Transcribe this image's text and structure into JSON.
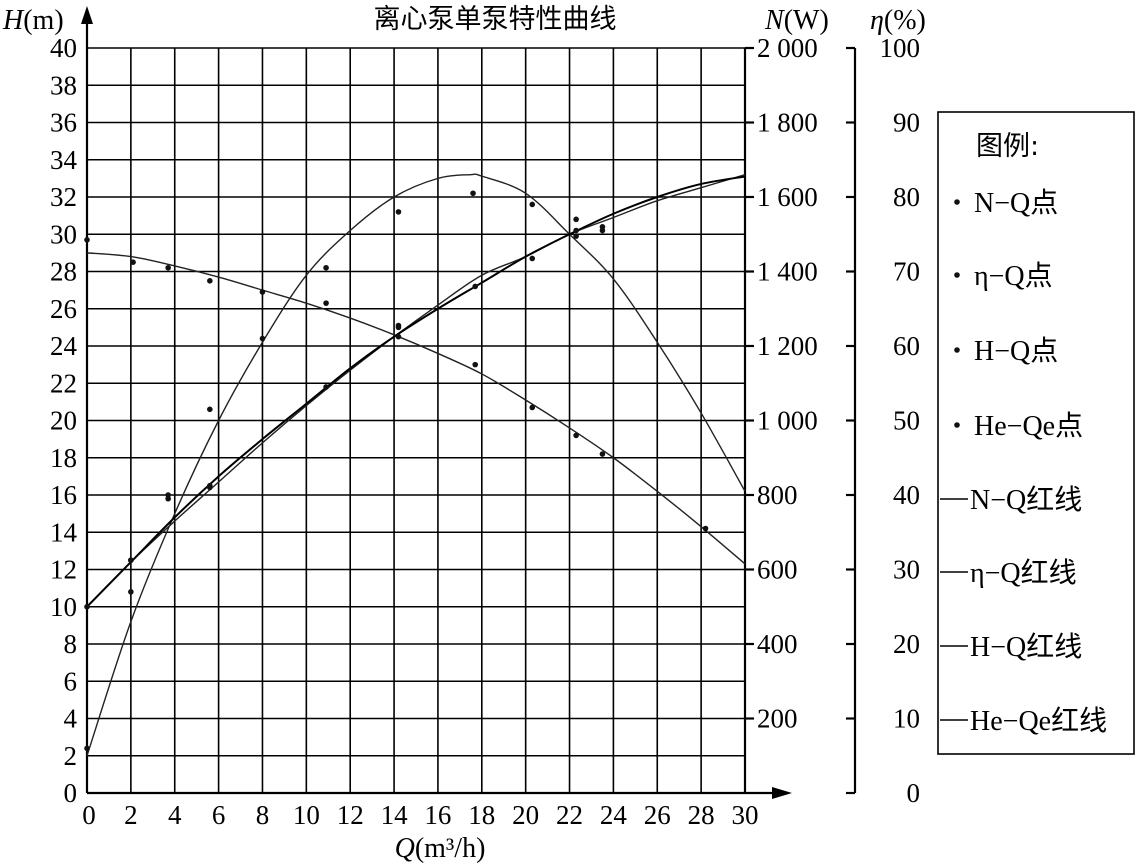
{
  "chart_data": {
    "type": "line",
    "title": "离心泵单泵特性曲线",
    "x_axis": {
      "label_var": "Q",
      "label_unit": "(m³/h)",
      "range": [
        0,
        30
      ],
      "ticks": [
        "0",
        "2",
        "4",
        "6",
        "8",
        "10",
        "12",
        "14",
        "16",
        "18",
        "20",
        "22",
        "24",
        "26",
        "28",
        "30"
      ]
    },
    "y_axis_H": {
      "label_var": "H",
      "label_unit": "(m)",
      "range": [
        0,
        40
      ],
      "ticks": [
        "0",
        "2",
        "4",
        "6",
        "8",
        "10",
        "12",
        "14",
        "16",
        "18",
        "20",
        "22",
        "24",
        "26",
        "28",
        "30",
        "32",
        "34",
        "36",
        "38",
        "40"
      ]
    },
    "y_axis_N": {
      "label_var": "N",
      "label_unit": "(W)",
      "range": [
        0,
        2000
      ],
      "ticks": [
        "200",
        "400",
        "600",
        "800",
        "1 000",
        "1 200",
        "1 400",
        "1 600",
        "1 800",
        "2 000"
      ]
    },
    "y_axis_eta": {
      "label_var": "η",
      "label_unit": "(%)",
      "range": [
        0,
        100
      ],
      "ticks": [
        "0",
        "10",
        "20",
        "30",
        "40",
        "50",
        "60",
        "70",
        "80",
        "90",
        "100"
      ]
    },
    "grid": true,
    "legend_position": "right",
    "legend": {
      "title": "图例:",
      "items": [
        "N−Q点",
        "η−Q点",
        "H−Q点",
        "He−Qe点",
        "N−Q红线",
        "η−Q红线",
        "H−Q红线",
        "He−Qe红线"
      ]
    },
    "series": [
      {
        "name": "η−Q",
        "axis": "eta",
        "points": [
          [
            0,
            6
          ],
          [
            2,
            27
          ],
          [
            3.7,
            40
          ],
          [
            5.6,
            51.5
          ],
          [
            8,
            61
          ],
          [
            10.9,
            70.5
          ],
          [
            14.2,
            78
          ],
          [
            17.6,
            80.5
          ],
          [
            20.3,
            79
          ],
          [
            22.3,
            77
          ],
          [
            23.5,
            75.5
          ]
        ],
        "curve": [
          [
            0,
            5
          ],
          [
            2,
            23
          ],
          [
            4,
            37.5
          ],
          [
            6,
            50
          ],
          [
            8,
            60.5
          ],
          [
            10,
            69.5
          ],
          [
            12,
            75.5
          ],
          [
            14,
            80
          ],
          [
            16,
            82.5
          ],
          [
            17.5,
            83
          ],
          [
            18,
            82.8
          ],
          [
            20,
            80.5
          ],
          [
            22,
            75
          ],
          [
            24,
            69
          ],
          [
            26,
            60.5
          ],
          [
            28,
            51
          ],
          [
            30,
            40.5
          ]
        ]
      },
      {
        "name": "N−Q",
        "axis": "N",
        "points": [
          [
            2,
            625
          ],
          [
            3.7,
            790
          ],
          [
            5.6,
            820
          ],
          [
            10.9,
            1090
          ],
          [
            14.2,
            1255
          ],
          [
            17.7,
            1360
          ],
          [
            20.3,
            1435
          ],
          [
            22.3,
            1495
          ],
          [
            23.5,
            1520
          ]
        ],
        "curve": [
          [
            0,
            500
          ],
          [
            2,
            620
          ],
          [
            4,
            730
          ],
          [
            6,
            835
          ],
          [
            8,
            940
          ],
          [
            10,
            1040
          ],
          [
            12,
            1135
          ],
          [
            14,
            1225
          ],
          [
            16,
            1310
          ],
          [
            18,
            1390
          ],
          [
            20,
            1440
          ],
          [
            22,
            1500
          ],
          [
            24,
            1545
          ],
          [
            26,
            1590
          ],
          [
            28,
            1625
          ],
          [
            30,
            1660
          ]
        ]
      },
      {
        "name": "H−Q",
        "axis": "H",
        "points": [
          [
            0,
            29.7
          ],
          [
            2.1,
            28.5
          ],
          [
            3.7,
            28.2
          ],
          [
            5.6,
            27.5
          ],
          [
            8,
            26.9
          ],
          [
            10.9,
            26.3
          ],
          [
            14.2,
            25
          ],
          [
            17.7,
            23
          ],
          [
            20.3,
            20.7
          ],
          [
            22.3,
            19.2
          ],
          [
            23.5,
            18.2
          ],
          [
            28.2,
            14.2
          ]
        ],
        "curve": [
          [
            0,
            29
          ],
          [
            2,
            28.8
          ],
          [
            4,
            28.3
          ],
          [
            6,
            27.7
          ],
          [
            8,
            27
          ],
          [
            10,
            26.3
          ],
          [
            12,
            25.5
          ],
          [
            14,
            24.6
          ],
          [
            16,
            23.6
          ],
          [
            18,
            22.5
          ],
          [
            20,
            21.1
          ],
          [
            22,
            19.6
          ],
          [
            24,
            18
          ],
          [
            26,
            16.2
          ],
          [
            28,
            14.3
          ],
          [
            30,
            12.3
          ]
        ]
      },
      {
        "name": "He−Qe",
        "axis": "H",
        "points": [
          [
            0,
            10
          ],
          [
            2,
            12.5
          ],
          [
            5.6,
            16.5
          ],
          [
            14.2,
            24.5
          ],
          [
            22.3,
            30.2
          ]
        ],
        "curve": [
          [
            0,
            10
          ],
          [
            2,
            12.4
          ],
          [
            4,
            14.8
          ],
          [
            6,
            17
          ],
          [
            8,
            19
          ],
          [
            10,
            20.9
          ],
          [
            12,
            22.8
          ],
          [
            14,
            24.5
          ],
          [
            16,
            26
          ],
          [
            18,
            27.4
          ],
          [
            20,
            28.8
          ],
          [
            22,
            30
          ],
          [
            24,
            31.1
          ],
          [
            26,
            32
          ],
          [
            28,
            32.7
          ],
          [
            30,
            33.1
          ]
        ]
      }
    ]
  }
}
